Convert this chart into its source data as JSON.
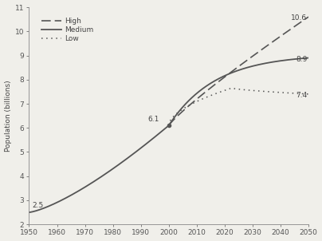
{
  "title": "",
  "xlabel": "",
  "ylabel": "Population (billions)",
  "xlim": [
    1950,
    2050
  ],
  "ylim": [
    2,
    11
  ],
  "yticks": [
    2,
    3,
    4,
    5,
    6,
    7,
    8,
    9,
    10,
    11
  ],
  "xticks": [
    1950,
    1960,
    1970,
    1980,
    1990,
    2000,
    2010,
    2020,
    2030,
    2040,
    2050
  ],
  "annotation_1950": "2.5",
  "annotation_2000": "6.1",
  "annotation_high": "10.6",
  "annotation_medium": "8.9",
  "annotation_low": "7.4",
  "split_year": 2000,
  "split_value": 6.1,
  "line_color": "#555555",
  "background_color": "#f0efea",
  "legend_labels": [
    "High",
    "Medium",
    "Low"
  ]
}
